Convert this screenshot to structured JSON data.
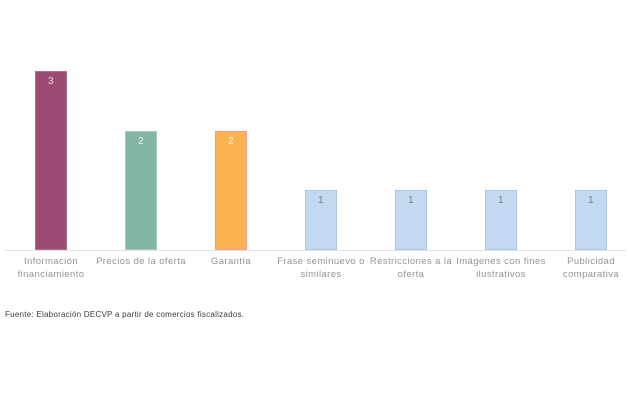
{
  "chart_data": {
    "type": "bar",
    "title": "",
    "xlabel": "",
    "ylabel": "",
    "ylim": [
      0,
      3.35
    ],
    "grid": false,
    "legend_position": "none",
    "categories": [
      "Información financiamiento",
      "Precios de la oferta",
      "Garantía",
      "Frase seminuevo o similares",
      "Restricciones a la oferta",
      "Imágenes con fines ilustrativos",
      "Publicidad comparativa"
    ],
    "values": [
      3,
      2,
      2,
      1,
      1,
      1,
      1
    ],
    "bar_colors": [
      "#9c4b73",
      "#83b6a3",
      "#fbb351",
      "#c3d9f1",
      "#c3d9f1",
      "#c3d9f1",
      "#c3d9f1"
    ],
    "bar_edge_colors": [
      "#ae6e90",
      "#a3cbbc",
      "#f59b94",
      "#a8c7e9",
      "#a8c7e9",
      "#a8c7e9",
      "#a8c7e9"
    ],
    "value_label_colors": [
      "#e9d4df",
      "#eaf3ef",
      "#fef6e0",
      "#7b7b7b",
      "#7b7b7b",
      "#7b7b7b",
      "#7b7b7b"
    ],
    "axis_line_color": "#e2e2e2",
    "category_label_color": "#949494"
  },
  "footnote": "Fuente: Elaboración DECVP a partir de comercios fiscalizados."
}
